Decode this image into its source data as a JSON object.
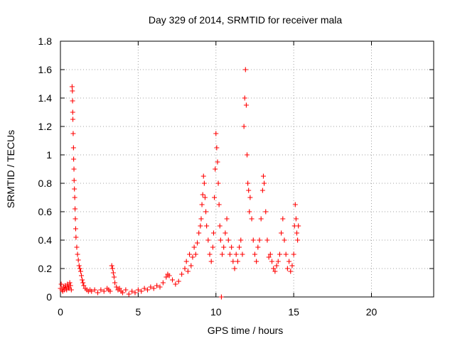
{
  "chart_data": {
    "type": "scatter",
    "title": "Day 329 of 2014, SRMTID for receiver mala",
    "xlabel": "GPS time / hours",
    "ylabel": "SRMTID / TECUs",
    "xlim": [
      0,
      24
    ],
    "ylim": [
      0,
      1.8
    ],
    "xticks": [
      0,
      5,
      10,
      15,
      20
    ],
    "xtick_labels": [
      "0",
      "5",
      "10",
      "15",
      "20"
    ],
    "yticks": [
      0,
      0.2,
      0.4,
      0.6,
      0.8,
      1.0,
      1.2,
      1.4,
      1.6,
      1.8
    ],
    "ytick_labels": [
      "0",
      "0.2",
      "0.4",
      "0.6",
      "0.8",
      "1",
      "1.2",
      "1.4",
      "1.6",
      "1.8"
    ],
    "grid": true,
    "marker": "+",
    "series": [
      {
        "color": "#ff0000",
        "points": [
          [
            0.0,
            0.06
          ],
          [
            0.05,
            0.09
          ],
          [
            0.1,
            0.05
          ],
          [
            0.15,
            0.04
          ],
          [
            0.2,
            0.07
          ],
          [
            0.25,
            0.05
          ],
          [
            0.3,
            0.08
          ],
          [
            0.35,
            0.06
          ],
          [
            0.4,
            0.05
          ],
          [
            0.45,
            0.09
          ],
          [
            0.5,
            0.07
          ],
          [
            0.55,
            0.06
          ],
          [
            0.6,
            0.1
          ],
          [
            0.65,
            0.08
          ],
          [
            0.7,
            0.05
          ],
          [
            0.75,
            1.48
          ],
          [
            0.77,
            1.45
          ],
          [
            0.78,
            1.38
          ],
          [
            0.79,
            1.3
          ],
          [
            0.8,
            1.25
          ],
          [
            0.82,
            1.15
          ],
          [
            0.84,
            1.05
          ],
          [
            0.85,
            0.97
          ],
          [
            0.87,
            0.9
          ],
          [
            0.88,
            0.82
          ],
          [
            0.9,
            0.76
          ],
          [
            0.92,
            0.7
          ],
          [
            0.94,
            0.62
          ],
          [
            0.96,
            0.55
          ],
          [
            0.98,
            0.48
          ],
          [
            1.0,
            0.42
          ],
          [
            1.05,
            0.35
          ],
          [
            1.1,
            0.3
          ],
          [
            1.15,
            0.26
          ],
          [
            1.2,
            0.22
          ],
          [
            1.25,
            0.2
          ],
          [
            1.3,
            0.18
          ],
          [
            1.35,
            0.15
          ],
          [
            1.4,
            0.12
          ],
          [
            1.45,
            0.1
          ],
          [
            1.5,
            0.08
          ],
          [
            1.6,
            0.06
          ],
          [
            1.7,
            0.05
          ],
          [
            1.8,
            0.04
          ],
          [
            1.9,
            0.05
          ],
          [
            2.0,
            0.04
          ],
          [
            2.2,
            0.05
          ],
          [
            2.4,
            0.03
          ],
          [
            2.6,
            0.05
          ],
          [
            2.8,
            0.04
          ],
          [
            3.0,
            0.06
          ],
          [
            3.1,
            0.05
          ],
          [
            3.2,
            0.04
          ],
          [
            3.3,
            0.22
          ],
          [
            3.35,
            0.2
          ],
          [
            3.4,
            0.17
          ],
          [
            3.45,
            0.14
          ],
          [
            3.5,
            0.1
          ],
          [
            3.6,
            0.07
          ],
          [
            3.7,
            0.05
          ],
          [
            3.8,
            0.06
          ],
          [
            3.9,
            0.04
          ],
          [
            4.0,
            0.03
          ],
          [
            4.2,
            0.05
          ],
          [
            4.4,
            0.02
          ],
          [
            4.6,
            0.04
          ],
          [
            4.8,
            0.03
          ],
          [
            5.0,
            0.05
          ],
          [
            5.2,
            0.04
          ],
          [
            5.4,
            0.06
          ],
          [
            5.6,
            0.05
          ],
          [
            5.8,
            0.07
          ],
          [
            6.0,
            0.06
          ],
          [
            6.2,
            0.08
          ],
          [
            6.4,
            0.07
          ],
          [
            6.6,
            0.1
          ],
          [
            6.8,
            0.14
          ],
          [
            6.9,
            0.16
          ],
          [
            7.0,
            0.15
          ],
          [
            7.2,
            0.12
          ],
          [
            7.4,
            0.09
          ],
          [
            7.6,
            0.11
          ],
          [
            7.8,
            0.16
          ],
          [
            8.0,
            0.2
          ],
          [
            8.1,
            0.25
          ],
          [
            8.2,
            0.18
          ],
          [
            8.3,
            0.3
          ],
          [
            8.4,
            0.22
          ],
          [
            8.5,
            0.28
          ],
          [
            8.6,
            0.35
          ],
          [
            8.7,
            0.3
          ],
          [
            8.8,
            0.38
          ],
          [
            8.9,
            0.45
          ],
          [
            9.0,
            0.5
          ],
          [
            9.05,
            0.55
          ],
          [
            9.1,
            0.65
          ],
          [
            9.15,
            0.72
          ],
          [
            9.2,
            0.85
          ],
          [
            9.25,
            0.8
          ],
          [
            9.3,
            0.7
          ],
          [
            9.35,
            0.6
          ],
          [
            9.4,
            0.5
          ],
          [
            9.5,
            0.4
          ],
          [
            9.6,
            0.3
          ],
          [
            9.7,
            0.25
          ],
          [
            9.8,
            0.35
          ],
          [
            9.85,
            0.45
          ],
          [
            9.9,
            0.7
          ],
          [
            9.95,
            0.9
          ],
          [
            10.0,
            1.15
          ],
          [
            10.05,
            1.05
          ],
          [
            10.1,
            0.95
          ],
          [
            10.15,
            0.8
          ],
          [
            10.2,
            0.65
          ],
          [
            10.25,
            0.5
          ],
          [
            10.3,
            0.4
          ],
          [
            10.35,
            0.0
          ],
          [
            10.4,
            0.3
          ],
          [
            10.5,
            0.35
          ],
          [
            10.6,
            0.45
          ],
          [
            10.7,
            0.55
          ],
          [
            10.8,
            0.4
          ],
          [
            10.9,
            0.3
          ],
          [
            11.0,
            0.35
          ],
          [
            11.1,
            0.25
          ],
          [
            11.2,
            0.2
          ],
          [
            11.3,
            0.3
          ],
          [
            11.4,
            0.25
          ],
          [
            11.5,
            0.35
          ],
          [
            11.6,
            0.4
          ],
          [
            11.7,
            0.3
          ],
          [
            11.8,
            1.2
          ],
          [
            11.85,
            1.4
          ],
          [
            11.9,
            1.6
          ],
          [
            11.95,
            1.35
          ],
          [
            12.0,
            1.0
          ],
          [
            12.05,
            0.8
          ],
          [
            12.1,
            0.75
          ],
          [
            12.15,
            0.6
          ],
          [
            12.2,
            0.7
          ],
          [
            12.3,
            0.55
          ],
          [
            12.4,
            0.4
          ],
          [
            12.5,
            0.3
          ],
          [
            12.6,
            0.25
          ],
          [
            12.7,
            0.35
          ],
          [
            12.8,
            0.4
          ],
          [
            12.9,
            0.55
          ],
          [
            13.0,
            0.75
          ],
          [
            13.05,
            0.85
          ],
          [
            13.1,
            0.8
          ],
          [
            13.2,
            0.6
          ],
          [
            13.3,
            0.4
          ],
          [
            13.4,
            0.28
          ],
          [
            13.5,
            0.3
          ],
          [
            13.6,
            0.25
          ],
          [
            13.7,
            0.2
          ],
          [
            13.8,
            0.18
          ],
          [
            13.9,
            0.22
          ],
          [
            14.0,
            0.25
          ],
          [
            14.1,
            0.3
          ],
          [
            14.2,
            0.45
          ],
          [
            14.3,
            0.55
          ],
          [
            14.4,
            0.4
          ],
          [
            14.5,
            0.3
          ],
          [
            14.6,
            0.2
          ],
          [
            14.7,
            0.25
          ],
          [
            14.8,
            0.18
          ],
          [
            14.9,
            0.22
          ],
          [
            15.0,
            0.3
          ],
          [
            15.05,
            0.5
          ],
          [
            15.1,
            0.65
          ],
          [
            15.15,
            0.55
          ],
          [
            15.2,
            0.45
          ],
          [
            15.25,
            0.4
          ],
          [
            15.3,
            0.5
          ]
        ]
      }
    ]
  }
}
